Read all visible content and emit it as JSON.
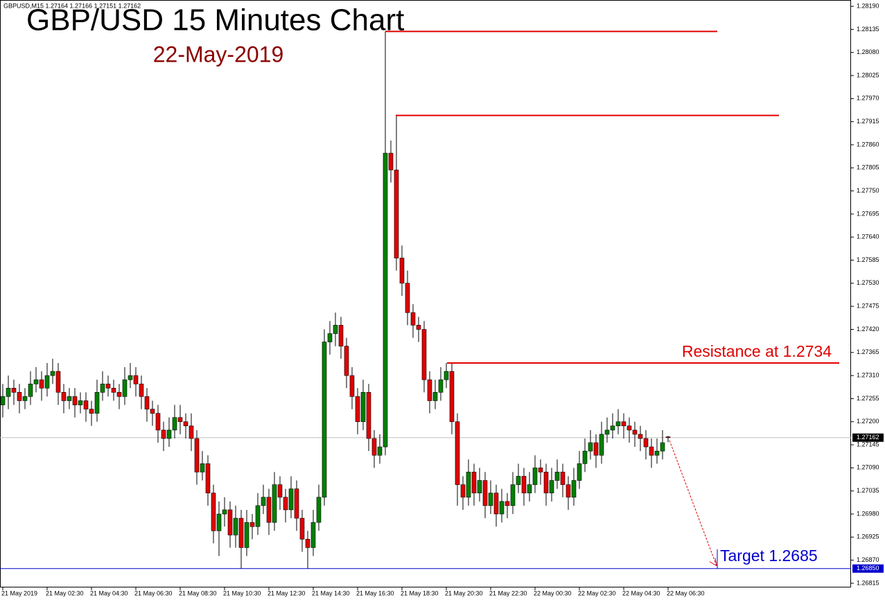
{
  "chart_data": {
    "type": "candlestick",
    "title": "GBP/USD 15 Minutes Chart",
    "subtitle": "22-May-2019",
    "header": "GBPUSD,M15  1.27164 1.27166 1.27151 1.27162",
    "bull_color": "#008000",
    "bear_color": "#e00000",
    "categories": [
      "21 May 2019",
      null,
      null,
      null,
      null,
      null,
      null,
      null,
      "21 May 02:30",
      null,
      null,
      null,
      null,
      null,
      null,
      null,
      "21 May 04:30",
      null,
      null,
      null,
      null,
      null,
      null,
      null,
      "21 May 06:30",
      null,
      null,
      null,
      null,
      null,
      null,
      null,
      "21 May 08:30",
      null,
      null,
      null,
      null,
      null,
      null,
      null,
      "21 May 10:30",
      null,
      null,
      null,
      null,
      null,
      null,
      null,
      "21 May 12:30",
      null,
      null,
      null,
      null,
      null,
      null,
      null,
      "21 May 14:30",
      null,
      null,
      null,
      null,
      null,
      null,
      null,
      "21 May 16:30",
      null,
      null,
      null,
      null,
      null,
      null,
      null,
      "21 May 18:30",
      null,
      null,
      null,
      null,
      null,
      null,
      null,
      "21 May 20:30",
      null,
      null,
      null,
      null,
      null,
      null,
      null,
      "21 May 22:30",
      null,
      null,
      null,
      null,
      null,
      null,
      null,
      "22 May 00:30",
      null,
      null,
      null,
      null,
      null,
      null,
      null,
      "22 May 02:30",
      null,
      null,
      null,
      null,
      null,
      null,
      null,
      "22 May 04:30",
      null,
      null,
      null,
      null,
      null,
      null,
      null,
      "22 May 06:30"
    ],
    "ohlc": [
      [
        1.2724,
        1.2729,
        1.2721,
        1.2726
      ],
      [
        1.2726,
        1.2731,
        1.2723,
        1.2728
      ],
      [
        1.2728,
        1.273,
        1.2724,
        1.2727
      ],
      [
        1.2727,
        1.2729,
        1.2722,
        1.2725
      ],
      [
        1.2725,
        1.2728,
        1.2723,
        1.2726
      ],
      [
        1.2726,
        1.2732,
        1.2724,
        1.2729
      ],
      [
        1.2729,
        1.2733,
        1.2727,
        1.273
      ],
      [
        1.273,
        1.2732,
        1.2725,
        1.2728
      ],
      [
        1.2728,
        1.2734,
        1.2726,
        1.2731
      ],
      [
        1.2731,
        1.2735,
        1.2729,
        1.2732
      ],
      [
        1.2732,
        1.2734,
        1.2724,
        1.2727
      ],
      [
        1.2727,
        1.2729,
        1.2722,
        1.2725
      ],
      [
        1.2725,
        1.2728,
        1.2723,
        1.2726
      ],
      [
        1.2726,
        1.2728,
        1.2721,
        1.2724
      ],
      [
        1.2724,
        1.2727,
        1.2722,
        1.2725
      ],
      [
        1.2725,
        1.2727,
        1.272,
        1.2723
      ],
      [
        1.2723,
        1.2725,
        1.2719,
        1.2722
      ],
      [
        1.2722,
        1.273,
        1.272,
        1.2727
      ],
      [
        1.2727,
        1.2732,
        1.2725,
        1.2729
      ],
      [
        1.2729,
        1.2731,
        1.2726,
        1.2728
      ],
      [
        1.2728,
        1.273,
        1.2725,
        1.2727
      ],
      [
        1.2727,
        1.2729,
        1.2723,
        1.2726
      ],
      [
        1.2726,
        1.2733,
        1.2724,
        1.273
      ],
      [
        1.273,
        1.2734,
        1.2728,
        1.2731
      ],
      [
        1.2731,
        1.2733,
        1.2726,
        1.2729
      ],
      [
        1.2729,
        1.2731,
        1.2723,
        1.2726
      ],
      [
        1.2726,
        1.2728,
        1.272,
        1.2723
      ],
      [
        1.2723,
        1.2725,
        1.2719,
        1.2722
      ],
      [
        1.2722,
        1.2724,
        1.2715,
        1.2718
      ],
      [
        1.2718,
        1.272,
        1.2713,
        1.2716
      ],
      [
        1.2716,
        1.2721,
        1.2714,
        1.2718
      ],
      [
        1.2718,
        1.2724,
        1.2716,
        1.2721
      ],
      [
        1.2721,
        1.2724,
        1.2717,
        1.272
      ],
      [
        1.272,
        1.2722,
        1.2716,
        1.2719
      ],
      [
        1.2719,
        1.2722,
        1.2713,
        1.2716
      ],
      [
        1.2716,
        1.2718,
        1.2705,
        1.2708
      ],
      [
        1.2708,
        1.2713,
        1.2706,
        1.271
      ],
      [
        1.271,
        1.2712,
        1.27,
        1.2703
      ],
      [
        1.2703,
        1.2705,
        1.2691,
        1.2694
      ],
      [
        1.2694,
        1.2701,
        1.2688,
        1.2698
      ],
      [
        1.2698,
        1.2702,
        1.2695,
        1.2699
      ],
      [
        1.2699,
        1.2701,
        1.269,
        1.2693
      ],
      [
        1.2693,
        1.27,
        1.269,
        1.2697
      ],
      [
        1.2697,
        1.2699,
        1.2685,
        1.269
      ],
      [
        1.269,
        1.2699,
        1.2688,
        1.2696
      ],
      [
        1.2696,
        1.2698,
        1.2692,
        1.2695
      ],
      [
        1.2695,
        1.2703,
        1.2693,
        1.27
      ],
      [
        1.27,
        1.2705,
        1.2698,
        1.2702
      ],
      [
        1.2702,
        1.2704,
        1.2693,
        1.2696
      ],
      [
        1.2696,
        1.2708,
        1.2694,
        1.2705
      ],
      [
        1.2705,
        1.2707,
        1.2699,
        1.2702
      ],
      [
        1.2702,
        1.2704,
        1.2696,
        1.2699
      ],
      [
        1.2699,
        1.2707,
        1.2697,
        1.2704
      ],
      [
        1.2704,
        1.2706,
        1.2694,
        1.2697
      ],
      [
        1.2697,
        1.2699,
        1.2689,
        1.2692
      ],
      [
        1.2692,
        1.2694,
        1.2685,
        1.269
      ],
      [
        1.269,
        1.2699,
        1.2688,
        1.2696
      ],
      [
        1.2696,
        1.2705,
        1.2694,
        1.2702
      ],
      [
        1.2702,
        1.2742,
        1.27,
        1.2739
      ],
      [
        1.2739,
        1.2744,
        1.2736,
        1.2741
      ],
      [
        1.2741,
        1.2746,
        1.2738,
        1.2743
      ],
      [
        1.2743,
        1.2745,
        1.2735,
        1.2738
      ],
      [
        1.2738,
        1.274,
        1.2728,
        1.2731
      ],
      [
        1.2731,
        1.2733,
        1.2723,
        1.2726
      ],
      [
        1.2726,
        1.2728,
        1.2717,
        1.272
      ],
      [
        1.272,
        1.273,
        1.2718,
        1.2727
      ],
      [
        1.2727,
        1.2729,
        1.2713,
        1.2716
      ],
      [
        1.2716,
        1.2718,
        1.2709,
        1.2712
      ],
      [
        1.2712,
        1.2717,
        1.271,
        1.2714
      ],
      [
        1.2714,
        1.2813,
        1.2712,
        1.2784
      ],
      [
        1.2784,
        1.2787,
        1.2777,
        1.278
      ],
      [
        1.278,
        1.2793,
        1.2756,
        1.2759
      ],
      [
        1.2759,
        1.2762,
        1.275,
        1.2753
      ],
      [
        1.2753,
        1.2756,
        1.2743,
        1.2746
      ],
      [
        1.2746,
        1.2748,
        1.274,
        1.2743
      ],
      [
        1.2743,
        1.2745,
        1.2739,
        1.2742
      ],
      [
        1.2742,
        1.2744,
        1.2727,
        1.273
      ],
      [
        1.273,
        1.2732,
        1.2722,
        1.2725
      ],
      [
        1.2725,
        1.273,
        1.2723,
        1.2727
      ],
      [
        1.2727,
        1.2733,
        1.2725,
        1.273
      ],
      [
        1.273,
        1.2734,
        1.2728,
        1.2732
      ],
      [
        1.2732,
        1.2734,
        1.2717,
        1.272
      ],
      [
        1.272,
        1.2722,
        1.27,
        1.2705
      ],
      [
        1.2705,
        1.2707,
        1.2699,
        1.2702
      ],
      [
        1.2702,
        1.2711,
        1.27,
        1.2708
      ],
      [
        1.2708,
        1.271,
        1.27,
        1.2703
      ],
      [
        1.2703,
        1.2709,
        1.2701,
        1.2706
      ],
      [
        1.2706,
        1.2708,
        1.2697,
        1.27
      ],
      [
        1.27,
        1.2706,
        1.2698,
        1.2703
      ],
      [
        1.2703,
        1.2705,
        1.2695,
        1.2698
      ],
      [
        1.2698,
        1.2704,
        1.2696,
        1.2701
      ],
      [
        1.2701,
        1.2703,
        1.2697,
        1.27
      ],
      [
        1.27,
        1.2708,
        1.2698,
        1.2705
      ],
      [
        1.2705,
        1.271,
        1.2703,
        1.2707
      ],
      [
        1.2707,
        1.2709,
        1.27,
        1.2703
      ],
      [
        1.2703,
        1.2708,
        1.2701,
        1.2705
      ],
      [
        1.2705,
        1.2712,
        1.2703,
        1.2709
      ],
      [
        1.2709,
        1.2711,
        1.2705,
        1.2708
      ],
      [
        1.2708,
        1.271,
        1.27,
        1.2703
      ],
      [
        1.2703,
        1.2709,
        1.2701,
        1.2706
      ],
      [
        1.2706,
        1.2711,
        1.2704,
        1.2708
      ],
      [
        1.2708,
        1.271,
        1.2702,
        1.2705
      ],
      [
        1.2705,
        1.2707,
        1.2699,
        1.2702
      ],
      [
        1.2702,
        1.2709,
        1.27,
        1.2706
      ],
      [
        1.2706,
        1.2713,
        1.2704,
        1.271
      ],
      [
        1.271,
        1.2716,
        1.2708,
        1.2713
      ],
      [
        1.2713,
        1.2718,
        1.2711,
        1.2715
      ],
      [
        1.2715,
        1.2717,
        1.2709,
        1.2712
      ],
      [
        1.2712,
        1.272,
        1.271,
        1.2717
      ],
      [
        1.2717,
        1.2721,
        1.2715,
        1.2718
      ],
      [
        1.2718,
        1.2722,
        1.2716,
        1.2719
      ],
      [
        1.2719,
        1.2723,
        1.2717,
        1.272
      ],
      [
        1.272,
        1.2722,
        1.2716,
        1.2719
      ],
      [
        1.2719,
        1.2721,
        1.2715,
        1.2718
      ],
      [
        1.2718,
        1.272,
        1.2714,
        1.2717
      ],
      [
        1.2717,
        1.2719,
        1.2713,
        1.2716
      ],
      [
        1.2716,
        1.2718,
        1.2711,
        1.2714
      ],
      [
        1.2714,
        1.2716,
        1.2709,
        1.2712
      ],
      [
        1.2712,
        1.2716,
        1.271,
        1.2713
      ],
      [
        1.2713,
        1.2718,
        1.2711,
        1.2715
      ],
      [
        1.27164,
        1.27166,
        1.27151,
        1.27162
      ]
    ],
    "ylim": [
      1.26805,
      1.28205
    ],
    "yticks": [
      {
        "value": 1.2819,
        "label": "1.28190"
      },
      {
        "value": 1.28135,
        "label": "1.28135"
      },
      {
        "value": 1.2808,
        "label": "1.28080"
      },
      {
        "value": 1.28025,
        "label": "1.28025"
      },
      {
        "value": 1.2797,
        "label": "1.27970"
      },
      {
        "value": 1.27915,
        "label": "1.27915"
      },
      {
        "value": 1.2786,
        "label": "1.27860"
      },
      {
        "value": 1.27805,
        "label": "1.27805"
      },
      {
        "value": 1.2775,
        "label": "1.27750"
      },
      {
        "value": 1.27695,
        "label": "1.27695"
      },
      {
        "value": 1.2764,
        "label": "1.27640"
      },
      {
        "value": 1.27585,
        "label": "1.27585"
      },
      {
        "value": 1.2753,
        "label": "1.27530"
      },
      {
        "value": 1.27475,
        "label": "1.27475"
      },
      {
        "value": 1.2742,
        "label": "1.27420"
      },
      {
        "value": 1.27365,
        "label": "1.27365"
      },
      {
        "value": 1.2731,
        "label": "1.27310"
      },
      {
        "value": 1.27255,
        "label": "1.27255"
      },
      {
        "value": 1.272,
        "label": "1.27200"
      },
      {
        "value": 1.27145,
        "label": "1.27145"
      },
      {
        "value": 1.2709,
        "label": "1.27090"
      },
      {
        "value": 1.27035,
        "label": "1.27035"
      },
      {
        "value": 1.2698,
        "label": "1.26980"
      },
      {
        "value": 1.26925,
        "label": "1.26925"
      },
      {
        "value": 1.2687,
        "label": "1.26870"
      },
      {
        "value": 1.26815,
        "label": "1.26815"
      }
    ],
    "current_price": 1.27162,
    "target_tag": {
      "value": 1.2685,
      "label": "1.26850",
      "color": "#0000cc"
    },
    "levels": [
      {
        "value": 1.2813,
        "color": "#e00000"
      },
      {
        "value": 1.2793,
        "color": "#e00000"
      },
      {
        "value": 1.2734,
        "color": "#e00000"
      }
    ],
    "annotations": [
      {
        "text": "Resistance at 1.2734",
        "color": "#e00000"
      },
      {
        "text": "Target 1.2685",
        "color": "#0000cc"
      }
    ]
  }
}
